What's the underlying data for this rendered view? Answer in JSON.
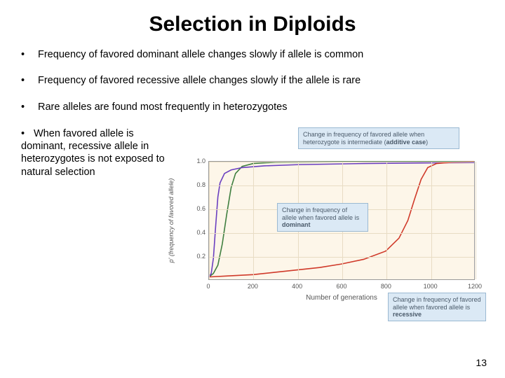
{
  "title": "Selection in Diploids",
  "bullets": [
    "Frequency of favored dominant allele changes slowly if allele is common",
    "Frequency of favored recessive allele changes slowly if the allele is rare",
    "Rare alleles are found most frequently in heterozygotes"
  ],
  "left_paragraph": {
    "lead_bullet": "•",
    "text": "When favored allele is dominant, recessive allele in heterozygotes is  not exposed to natural selection"
  },
  "chart": {
    "type": "line",
    "background_color": "#fdf6e9",
    "grid_color": "#e8dcc4",
    "border_color": "#999999",
    "xlabel": "Number of generations",
    "ylabel": "p' (frequency of favored allele)",
    "xlim": [
      0,
      1200
    ],
    "ylim": [
      0,
      1.0
    ],
    "xticks": [
      0,
      200,
      400,
      600,
      800,
      1000,
      1200
    ],
    "yticks": [
      0.2,
      0.4,
      0.6,
      0.8,
      1.0
    ],
    "series": [
      {
        "name": "additive",
        "color": "#3f7f3f",
        "line_width": 1.6,
        "points": [
          [
            0,
            0.02
          ],
          [
            20,
            0.05
          ],
          [
            40,
            0.12
          ],
          [
            60,
            0.3
          ],
          [
            80,
            0.55
          ],
          [
            100,
            0.78
          ],
          [
            120,
            0.9
          ],
          [
            150,
            0.96
          ],
          [
            200,
            0.985
          ],
          [
            300,
            0.995
          ],
          [
            600,
            0.999
          ],
          [
            1200,
            1.0
          ]
        ]
      },
      {
        "name": "dominant",
        "color": "#6a3fc0",
        "line_width": 1.6,
        "points": [
          [
            0,
            0.02
          ],
          [
            10,
            0.05
          ],
          [
            20,
            0.18
          ],
          [
            30,
            0.45
          ],
          [
            40,
            0.7
          ],
          [
            50,
            0.82
          ],
          [
            70,
            0.9
          ],
          [
            100,
            0.93
          ],
          [
            150,
            0.95
          ],
          [
            250,
            0.965
          ],
          [
            400,
            0.975
          ],
          [
            700,
            0.985
          ],
          [
            1000,
            0.99
          ],
          [
            1200,
            0.993
          ]
        ]
      },
      {
        "name": "recessive",
        "color": "#d03a2a",
        "line_width": 1.6,
        "points": [
          [
            0,
            0.02
          ],
          [
            100,
            0.03
          ],
          [
            200,
            0.04
          ],
          [
            300,
            0.06
          ],
          [
            400,
            0.08
          ],
          [
            500,
            0.1
          ],
          [
            600,
            0.13
          ],
          [
            700,
            0.17
          ],
          [
            800,
            0.24
          ],
          [
            860,
            0.35
          ],
          [
            900,
            0.5
          ],
          [
            930,
            0.68
          ],
          [
            960,
            0.85
          ],
          [
            990,
            0.95
          ],
          [
            1030,
            0.985
          ],
          [
            1100,
            0.995
          ],
          [
            1200,
            0.999
          ]
        ]
      }
    ],
    "annotations": {
      "additive": {
        "text_before": "Change in frequency of favored allele when heterozygote is intermediate (",
        "hl": "additive case",
        "text_after": ")"
      },
      "dominant": {
        "text_before": "Change in frequency of allele when favored allele is ",
        "hl": "dominant"
      },
      "recessive": {
        "text_before": "Change in frequency of favored allele when favored allele is ",
        "hl": "recessive"
      }
    }
  },
  "page_number": "13"
}
